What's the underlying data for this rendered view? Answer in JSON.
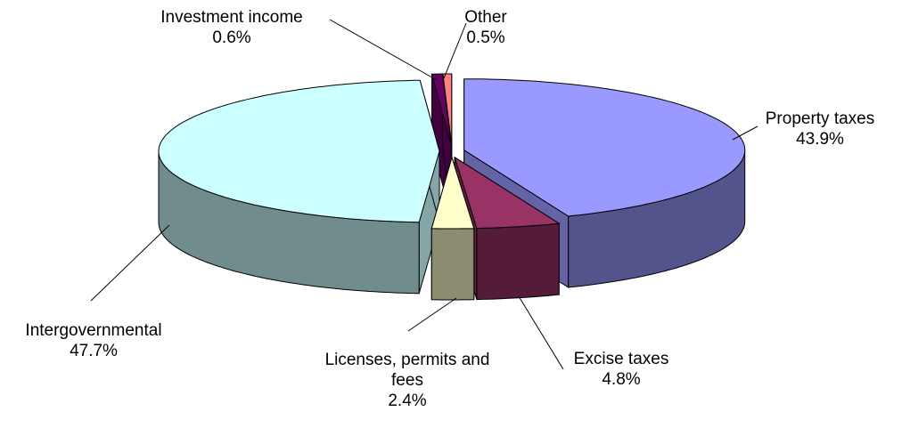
{
  "chart_data": {
    "type": "pie3d",
    "categories": [
      "Property taxes",
      "Excise taxes",
      "Licenses, permits and fees",
      "Intergovernmental",
      "Investment income",
      "Other"
    ],
    "values": [
      43.9,
      4.8,
      2.4,
      47.7,
      0.6,
      0.5
    ],
    "value_labels": [
      "43.9%",
      "4.8%",
      "2.4%",
      "47.7%",
      "0.6%",
      "0.5%"
    ],
    "colors": [
      "#9999ff",
      "#993366",
      "#ffffcc",
      "#ccffff",
      "#660066",
      "#ff8080"
    ]
  }
}
